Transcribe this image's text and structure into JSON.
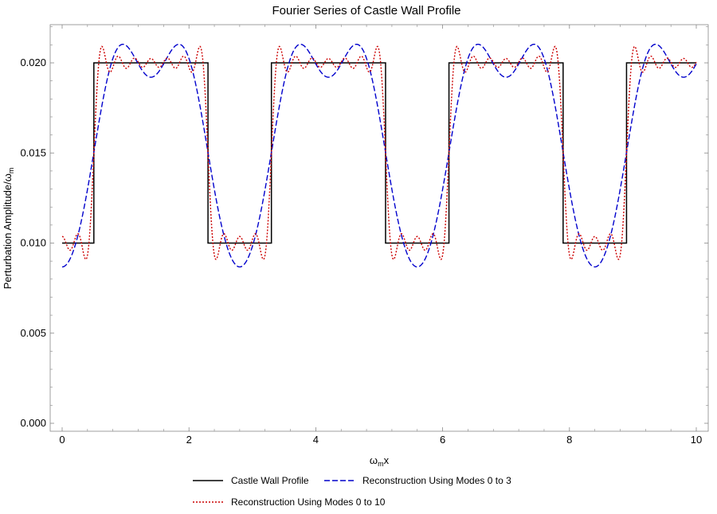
{
  "chart_data": {
    "type": "line",
    "title": "Fourier Series of Castle Wall Profile",
    "xlabel": {
      "omega": "ω",
      "sub": "m",
      "tail": "x"
    },
    "ylabel": {
      "main": "Perturbation Amplitude/",
      "omega": "ω",
      "sub": "m"
    },
    "xlim": [
      0,
      10
    ],
    "ylim": [
      0,
      0.02
    ],
    "x_ticks": [
      "0",
      "2",
      "4",
      "6",
      "8",
      "10"
    ],
    "y_ticks": [
      "0.000",
      "0.005",
      "0.010",
      "0.015",
      "0.020"
    ],
    "grid": false,
    "legend_position": "bottom",
    "profile": {
      "low": 0.01,
      "high": 0.02,
      "period": 2.8,
      "high_fraction": 0.642857,
      "phase_offset": 0.5
    },
    "series": [
      {
        "name": "Castle Wall Profile",
        "style": "solid",
        "color": "#000000",
        "modes": "exact"
      },
      {
        "name": "Reconstruction Using Modes 0 to 3",
        "style": "dashed",
        "color": "#0000cc",
        "modes": 3
      },
      {
        "name": "Reconstruction Using Modes 0 to 10",
        "style": "dotted",
        "color": "#cc0000",
        "modes": 10
      }
    ]
  }
}
